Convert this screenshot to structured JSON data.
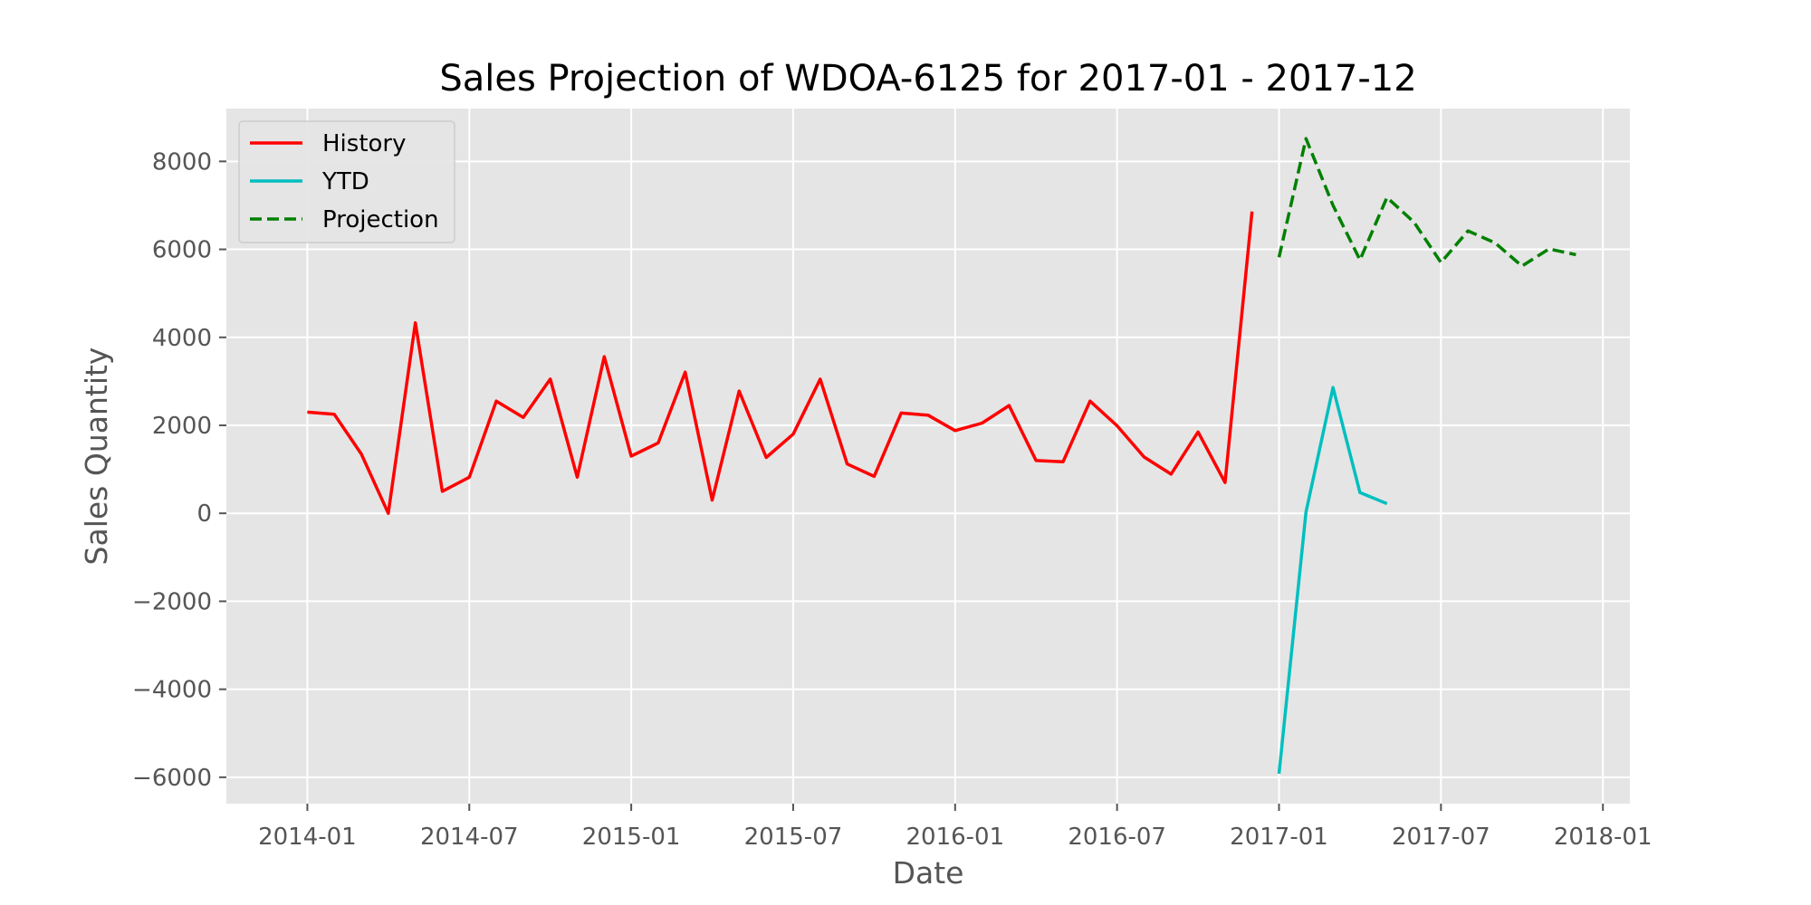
{
  "chart_data": {
    "type": "line",
    "title": "Sales Projection of WDOA-6125 for 2017-01 - 2017-12",
    "xlabel": "Date",
    "ylabel": "Sales Quantity",
    "xlim": [
      "2013-10",
      "2018-02"
    ],
    "ylim": [
      -6600,
      9200
    ],
    "grid": true,
    "legend_position": "top-left",
    "x_ticks": [
      "2014-01",
      "2014-07",
      "2015-01",
      "2015-07",
      "2016-01",
      "2016-07",
      "2017-01",
      "2017-07",
      "2018-01"
    ],
    "y_ticks": [
      8000,
      6000,
      4000,
      2000,
      0,
      -2000,
      -4000,
      -6000
    ],
    "y_tick_labels": [
      "8000",
      "6000",
      "4000",
      "2000",
      "0",
      "−2000",
      "−4000",
      "−6000"
    ],
    "series": [
      {
        "name": "History",
        "color": "#ff0000",
        "style": "solid",
        "x": [
          "2014-01",
          "2014-02",
          "2014-03",
          "2014-04",
          "2014-05",
          "2014-06",
          "2014-07",
          "2014-08",
          "2014-09",
          "2014-10",
          "2014-11",
          "2014-12",
          "2015-01",
          "2015-02",
          "2015-03",
          "2015-04",
          "2015-05",
          "2015-06",
          "2015-07",
          "2015-08",
          "2015-09",
          "2015-10",
          "2015-11",
          "2015-12",
          "2016-01",
          "2016-02",
          "2016-03",
          "2016-04",
          "2016-05",
          "2016-06",
          "2016-07",
          "2016-08",
          "2016-09",
          "2016-10",
          "2016-11",
          "2016-12"
        ],
        "values": [
          2300,
          2250,
          1350,
          0,
          4330,
          500,
          820,
          2550,
          2180,
          3050,
          820,
          3560,
          1300,
          1600,
          3210,
          300,
          2780,
          1270,
          1800,
          3050,
          1120,
          840,
          2280,
          2230,
          1880,
          2050,
          2450,
          1200,
          1170,
          2550,
          1990,
          1280,
          890,
          1850,
          700,
          6860
        ]
      },
      {
        "name": "YTD",
        "color": "#00bfbf",
        "style": "solid",
        "x": [
          "2017-01",
          "2017-02",
          "2017-03",
          "2017-04",
          "2017-05"
        ],
        "values": [
          -5920,
          30,
          2860,
          470,
          220
        ]
      },
      {
        "name": "Projection",
        "color": "#008000",
        "style": "dashed",
        "x": [
          "2017-01",
          "2017-02",
          "2017-03",
          "2017-04",
          "2017-05",
          "2017-06",
          "2017-07",
          "2017-08",
          "2017-09",
          "2017-10",
          "2017-11",
          "2017-12"
        ],
        "values": [
          5820,
          8520,
          7000,
          5760,
          7180,
          6620,
          5700,
          6420,
          6150,
          5620,
          6010,
          5880
        ]
      }
    ]
  }
}
